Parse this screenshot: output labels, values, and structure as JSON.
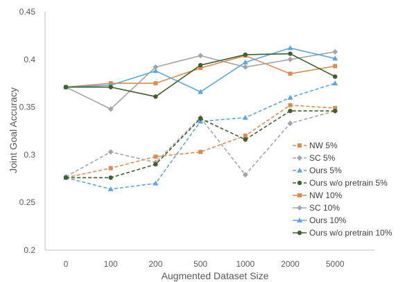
{
  "chart_data": {
    "type": "line",
    "title": "",
    "xlabel": "Augmented Dataset Size",
    "ylabel": "Joint Goal Accuracy",
    "categories": [
      "0",
      "100",
      "200",
      "500",
      "1000",
      "2000",
      "5000"
    ],
    "ylim": [
      0.2,
      0.45
    ],
    "yticks": [
      "0.2",
      "0.25",
      "0.3",
      "0.35",
      "0.4",
      "0.45"
    ],
    "grid": false,
    "legend_position": "right",
    "series": [
      {
        "name": "NW 5%",
        "color": "#E08A4E",
        "dashed": true,
        "marker": "square",
        "values": [
          0.276,
          0.286,
          0.298,
          0.303,
          0.32,
          0.352,
          0.349
        ]
      },
      {
        "name": "SC 5%",
        "color": "#A5A5A5",
        "dashed": true,
        "marker": "diamond",
        "values": [
          0.277,
          0.303,
          0.292,
          0.339,
          0.279,
          0.333,
          0.346
        ]
      },
      {
        "name": "Ours 5%",
        "color": "#5AA5E6",
        "dashed": true,
        "marker": "triangle",
        "values": [
          0.276,
          0.264,
          0.27,
          0.335,
          0.339,
          0.36,
          0.375
        ]
      },
      {
        "name": "Ours w/o pretrain 5%",
        "color": "#3E5F2E",
        "dashed": true,
        "marker": "circle",
        "values": [
          0.276,
          0.276,
          0.29,
          0.338,
          0.316,
          0.346,
          0.346
        ]
      },
      {
        "name": "NW 10%",
        "color": "#E08A4E",
        "dashed": false,
        "marker": "square",
        "values": [
          0.371,
          0.375,
          0.375,
          0.391,
          0.404,
          0.385,
          0.393
        ]
      },
      {
        "name": "SC 10%",
        "color": "#A5A5A5",
        "dashed": false,
        "marker": "diamond",
        "values": [
          0.371,
          0.348,
          0.392,
          0.404,
          0.392,
          0.4,
          0.408
        ]
      },
      {
        "name": "Ours 10%",
        "color": "#5AA5E6",
        "dashed": false,
        "marker": "triangle",
        "values": [
          0.371,
          0.373,
          0.388,
          0.366,
          0.397,
          0.412,
          0.401
        ]
      },
      {
        "name": "Ours w/o pretrain 10%",
        "color": "#3E5F2E",
        "dashed": false,
        "marker": "circle",
        "values": [
          0.371,
          0.371,
          0.361,
          0.394,
          0.405,
          0.406,
          0.382
        ]
      }
    ]
  }
}
